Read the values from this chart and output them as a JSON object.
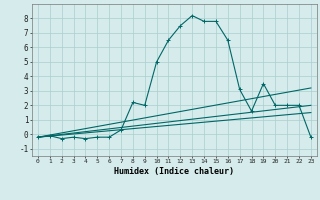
{
  "xlabel": "Humidex (Indice chaleur)",
  "background_color": "#d6ecec",
  "grid_color": "#aacfcf",
  "line_color": "#006666",
  "xlim": [
    -0.5,
    23.5
  ],
  "ylim": [
    -1.5,
    9.0
  ],
  "yticks": [
    -1,
    0,
    1,
    2,
    3,
    4,
    5,
    6,
    7,
    8
  ],
  "xtick_labels": [
    "0",
    "1",
    "2",
    "3",
    "4",
    "5",
    "6",
    "7",
    "8",
    "9",
    "10",
    "11",
    "12",
    "13",
    "14",
    "15",
    "16",
    "17",
    "18",
    "19",
    "20",
    "21",
    "22",
    "23"
  ],
  "series": [
    {
      "x": [
        0,
        1,
        2,
        3,
        4,
        5,
        6,
        7,
        8,
        9,
        10,
        11,
        12,
        13,
        14,
        15,
        16,
        17,
        18,
        19,
        20,
        21,
        22,
        23
      ],
      "y": [
        -0.2,
        -0.1,
        -0.3,
        -0.2,
        -0.3,
        -0.2,
        -0.2,
        0.3,
        2.2,
        2.0,
        5.0,
        6.5,
        7.5,
        8.2,
        7.8,
        7.8,
        6.5,
        3.1,
        1.6,
        3.5,
        2.0,
        2.0,
        2.0,
        -0.2
      ],
      "marker": "+",
      "linewidth": 0.8,
      "markersize": 3.0
    },
    {
      "x": [
        0,
        23
      ],
      "y": [
        -0.2,
        2.0
      ],
      "marker": null,
      "linewidth": 0.8
    },
    {
      "x": [
        0,
        23
      ],
      "y": [
        -0.2,
        1.5
      ],
      "marker": null,
      "linewidth": 0.8
    },
    {
      "x": [
        0,
        23
      ],
      "y": [
        -0.2,
        3.2
      ],
      "marker": null,
      "linewidth": 0.8
    }
  ]
}
